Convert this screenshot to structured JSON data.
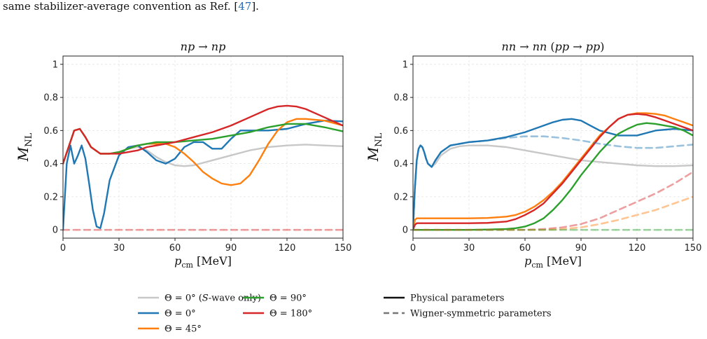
{
  "caption": {
    "prefix": "same stabilizer-average convention as Ref. [",
    "ref": "47",
    "suffix": "]."
  },
  "chart_data": [
    {
      "type": "line",
      "title": "np → np",
      "xlabel": "p_cm [MeV]",
      "ylabel": "M_NL",
      "xlim": [
        0,
        150
      ],
      "ylim": [
        -0.05,
        1.05
      ],
      "xticks": [
        0,
        30,
        60,
        90,
        120,
        150
      ],
      "yticks": [
        0.0,
        0.2,
        0.4,
        0.6,
        0.8,
        1.0
      ],
      "grid": true,
      "series": [
        {
          "name": "Θ = 0° (S-wave only)",
          "color": "#c8c8c8",
          "style": "solid",
          "x": [
            0,
            3,
            6,
            9,
            12,
            15,
            20,
            25,
            30,
            35,
            40,
            45,
            50,
            55,
            60,
            65,
            70,
            80,
            90,
            100,
            110,
            120,
            130,
            140,
            150
          ],
          "y": [
            0.4,
            0.5,
            0.6,
            0.61,
            0.56,
            0.5,
            0.46,
            0.46,
            0.47,
            0.49,
            0.5,
            0.48,
            0.44,
            0.41,
            0.39,
            0.385,
            0.39,
            0.42,
            0.45,
            0.48,
            0.5,
            0.51,
            0.515,
            0.51,
            0.505
          ]
        },
        {
          "name": "Θ = 0°",
          "color": "#1f77b4",
          "style": "solid",
          "x": [
            0,
            2,
            4,
            6,
            8,
            10,
            12,
            14,
            16,
            18,
            20,
            22,
            25,
            30,
            35,
            40,
            45,
            50,
            55,
            60,
            65,
            70,
            75,
            80,
            85,
            90,
            95,
            100,
            110,
            120,
            130,
            140,
            150
          ],
          "y": [
            0.0,
            0.4,
            0.51,
            0.4,
            0.45,
            0.51,
            0.43,
            0.28,
            0.12,
            0.02,
            0.01,
            0.1,
            0.3,
            0.45,
            0.5,
            0.51,
            0.47,
            0.42,
            0.4,
            0.43,
            0.5,
            0.53,
            0.53,
            0.49,
            0.49,
            0.55,
            0.6,
            0.6,
            0.6,
            0.61,
            0.64,
            0.66,
            0.655
          ]
        },
        {
          "name": "Θ = 45°",
          "color": "#ff7f0e",
          "style": "solid",
          "x": [
            0,
            3,
            6,
            9,
            12,
            15,
            20,
            25,
            30,
            35,
            40,
            45,
            50,
            55,
            60,
            65,
            70,
            75,
            80,
            85,
            90,
            95,
            100,
            105,
            110,
            115,
            120,
            125,
            130,
            140,
            150
          ],
          "y": [
            0.4,
            0.5,
            0.6,
            0.61,
            0.56,
            0.5,
            0.46,
            0.46,
            0.47,
            0.49,
            0.51,
            0.52,
            0.52,
            0.52,
            0.5,
            0.46,
            0.41,
            0.35,
            0.31,
            0.28,
            0.27,
            0.28,
            0.33,
            0.42,
            0.52,
            0.6,
            0.65,
            0.67,
            0.67,
            0.66,
            0.63
          ]
        },
        {
          "name": "Θ = 90°",
          "color": "#2ca02c",
          "style": "solid",
          "x": [
            0,
            3,
            6,
            9,
            12,
            15,
            20,
            25,
            30,
            35,
            40,
            45,
            50,
            60,
            70,
            80,
            90,
            100,
            110,
            120,
            130,
            140,
            150
          ],
          "y": [
            0.4,
            0.5,
            0.6,
            0.61,
            0.56,
            0.5,
            0.46,
            0.46,
            0.47,
            0.49,
            0.51,
            0.52,
            0.53,
            0.53,
            0.54,
            0.55,
            0.57,
            0.59,
            0.62,
            0.64,
            0.64,
            0.62,
            0.595
          ]
        },
        {
          "name": "Θ = 180°",
          "color": "#d62728",
          "style": "solid",
          "x": [
            0,
            3,
            6,
            9,
            12,
            15,
            20,
            25,
            30,
            35,
            40,
            45,
            50,
            60,
            70,
            80,
            90,
            100,
            110,
            115,
            120,
            125,
            130,
            140,
            150
          ],
          "y": [
            0.4,
            0.5,
            0.6,
            0.61,
            0.56,
            0.5,
            0.46,
            0.46,
            0.46,
            0.47,
            0.48,
            0.5,
            0.51,
            0.53,
            0.56,
            0.59,
            0.63,
            0.68,
            0.73,
            0.745,
            0.75,
            0.745,
            0.73,
            0.68,
            0.63
          ]
        },
        {
          "name": "Θ = 0° (S-wave only)",
          "color": "#d62728",
          "style": "dashed",
          "opacity": 0.45,
          "x": [
            0,
            150
          ],
          "y": [
            0.0,
            0.0
          ]
        }
      ]
    },
    {
      "type": "line",
      "title": "nn → nn (pp → pp)",
      "xlabel": "p_cm [MeV]",
      "ylabel": "M_NL",
      "xlim": [
        0,
        150
      ],
      "ylim": [
        -0.05,
        1.05
      ],
      "xticks": [
        0,
        30,
        60,
        90,
        120,
        150
      ],
      "yticks": [
        0.0,
        0.2,
        0.4,
        0.6,
        0.8,
        1.0
      ],
      "grid": true,
      "series": [
        {
          "name": "Θ = 0° (S-wave only)",
          "color": "#c8c8c8",
          "style": "solid",
          "x": [
            0,
            1,
            2,
            3,
            4,
            5,
            6,
            7,
            8,
            10,
            12,
            15,
            20,
            25,
            30,
            40,
            50,
            60,
            70,
            80,
            90,
            100,
            110,
            120,
            130,
            140,
            150
          ],
          "y": [
            0.0,
            0.25,
            0.42,
            0.49,
            0.51,
            0.5,
            0.47,
            0.43,
            0.4,
            0.38,
            0.4,
            0.45,
            0.49,
            0.505,
            0.51,
            0.51,
            0.5,
            0.48,
            0.46,
            0.44,
            0.42,
            0.41,
            0.4,
            0.39,
            0.385,
            0.385,
            0.39
          ]
        },
        {
          "name": "Θ = 0°",
          "color": "#1f77b4",
          "style": "solid",
          "x": [
            0,
            1,
            2,
            3,
            4,
            5,
            6,
            7,
            8,
            10,
            12,
            15,
            20,
            25,
            30,
            40,
            50,
            60,
            70,
            75,
            80,
            85,
            90,
            95,
            100,
            110,
            120,
            130,
            140,
            150
          ],
          "y": [
            0.0,
            0.25,
            0.42,
            0.49,
            0.51,
            0.5,
            0.47,
            0.43,
            0.4,
            0.38,
            0.42,
            0.47,
            0.51,
            0.52,
            0.53,
            0.54,
            0.56,
            0.59,
            0.63,
            0.65,
            0.665,
            0.67,
            0.66,
            0.63,
            0.6,
            0.57,
            0.57,
            0.6,
            0.61,
            0.6
          ]
        },
        {
          "name": "Θ = 45°",
          "color": "#ff7f0e",
          "style": "solid",
          "x": [
            0,
            1,
            2,
            5,
            10,
            20,
            30,
            40,
            50,
            55,
            60,
            65,
            70,
            75,
            80,
            85,
            90,
            95,
            100,
            105,
            110,
            115,
            120,
            125,
            130,
            135,
            140,
            145,
            150
          ],
          "y": [
            0.0,
            0.06,
            0.07,
            0.07,
            0.07,
            0.07,
            0.07,
            0.072,
            0.08,
            0.09,
            0.11,
            0.14,
            0.18,
            0.23,
            0.29,
            0.36,
            0.43,
            0.5,
            0.57,
            0.62,
            0.67,
            0.695,
            0.705,
            0.705,
            0.7,
            0.69,
            0.67,
            0.65,
            0.63
          ]
        },
        {
          "name": "Θ = 90°",
          "color": "#2ca02c",
          "style": "solid",
          "x": [
            0,
            1,
            2,
            5,
            10,
            20,
            30,
            40,
            50,
            55,
            60,
            65,
            70,
            75,
            80,
            85,
            90,
            95,
            100,
            105,
            110,
            115,
            120,
            125,
            130,
            135,
            140,
            145,
            150
          ],
          "y": [
            0.0,
            0.0,
            0.0,
            0.0,
            0.0,
            0.0,
            0.0,
            0.002,
            0.005,
            0.01,
            0.02,
            0.04,
            0.07,
            0.12,
            0.18,
            0.25,
            0.33,
            0.4,
            0.47,
            0.53,
            0.58,
            0.61,
            0.635,
            0.645,
            0.64,
            0.63,
            0.62,
            0.6,
            0.57
          ]
        },
        {
          "name": "Θ = 180°",
          "color": "#d62728",
          "style": "solid",
          "x": [
            0,
            1,
            2,
            5,
            10,
            20,
            30,
            40,
            50,
            55,
            60,
            65,
            70,
            75,
            80,
            85,
            90,
            95,
            100,
            105,
            110,
            115,
            120,
            125,
            130,
            135,
            140,
            145,
            150
          ],
          "y": [
            0.0,
            0.03,
            0.04,
            0.04,
            0.04,
            0.04,
            0.04,
            0.042,
            0.05,
            0.065,
            0.09,
            0.12,
            0.16,
            0.22,
            0.28,
            0.35,
            0.42,
            0.49,
            0.56,
            0.62,
            0.67,
            0.695,
            0.7,
            0.695,
            0.68,
            0.66,
            0.64,
            0.62,
            0.6
          ]
        },
        {
          "name": "Θ = 0°",
          "color": "#1f77b4",
          "style": "dashed",
          "opacity": 0.45,
          "x": [
            0,
            1,
            2,
            3,
            4,
            5,
            6,
            7,
            8,
            10,
            12,
            15,
            20,
            25,
            30,
            40,
            50,
            60,
            70,
            80,
            90,
            100,
            110,
            120,
            130,
            140,
            150
          ],
          "y": [
            0.0,
            0.25,
            0.42,
            0.49,
            0.51,
            0.5,
            0.47,
            0.43,
            0.4,
            0.38,
            0.42,
            0.47,
            0.51,
            0.52,
            0.53,
            0.54,
            0.555,
            0.565,
            0.565,
            0.555,
            0.54,
            0.52,
            0.505,
            0.495,
            0.495,
            0.505,
            0.515
          ]
        },
        {
          "name": "Θ = 180°",
          "color": "#d62728",
          "style": "dashed",
          "opacity": 0.45,
          "x": [
            0,
            60,
            70,
            80,
            90,
            100,
            110,
            120,
            130,
            140,
            150
          ],
          "y": [
            0.0,
            0.0,
            0.005,
            0.015,
            0.035,
            0.07,
            0.12,
            0.17,
            0.22,
            0.28,
            0.35
          ]
        },
        {
          "name": "Θ = 45°",
          "color": "#ff7f0e",
          "style": "dashed",
          "opacity": 0.45,
          "x": [
            0,
            70,
            80,
            90,
            100,
            110,
            120,
            130,
            140,
            150
          ],
          "y": [
            0.0,
            0.0,
            0.005,
            0.015,
            0.035,
            0.06,
            0.09,
            0.12,
            0.16,
            0.2
          ]
        },
        {
          "name": "Θ = 90°",
          "color": "#2ca02c",
          "style": "dashed",
          "opacity": 0.45,
          "x": [
            0,
            150
          ],
          "y": [
            0.0,
            0.0
          ]
        }
      ]
    }
  ],
  "legend": {
    "entries": [
      {
        "label": "Θ = 0° (S-wave only)",
        "color": "#c8c8c8",
        "style": "solid"
      },
      {
        "label": "Θ = 0°",
        "color": "#1f77b4",
        "style": "solid"
      },
      {
        "label": "Θ = 45°",
        "color": "#ff7f0e",
        "style": "solid"
      },
      {
        "label": "Θ = 90°",
        "color": "#2ca02c",
        "style": "solid"
      },
      {
        "label": "Θ = 180°",
        "color": "#d62728",
        "style": "solid"
      },
      {
        "label": "Physical parameters",
        "color": "#111111",
        "style": "solid"
      },
      {
        "label": "Wigner-symmetric parameters",
        "color": "#777777",
        "style": "dashed"
      }
    ]
  }
}
